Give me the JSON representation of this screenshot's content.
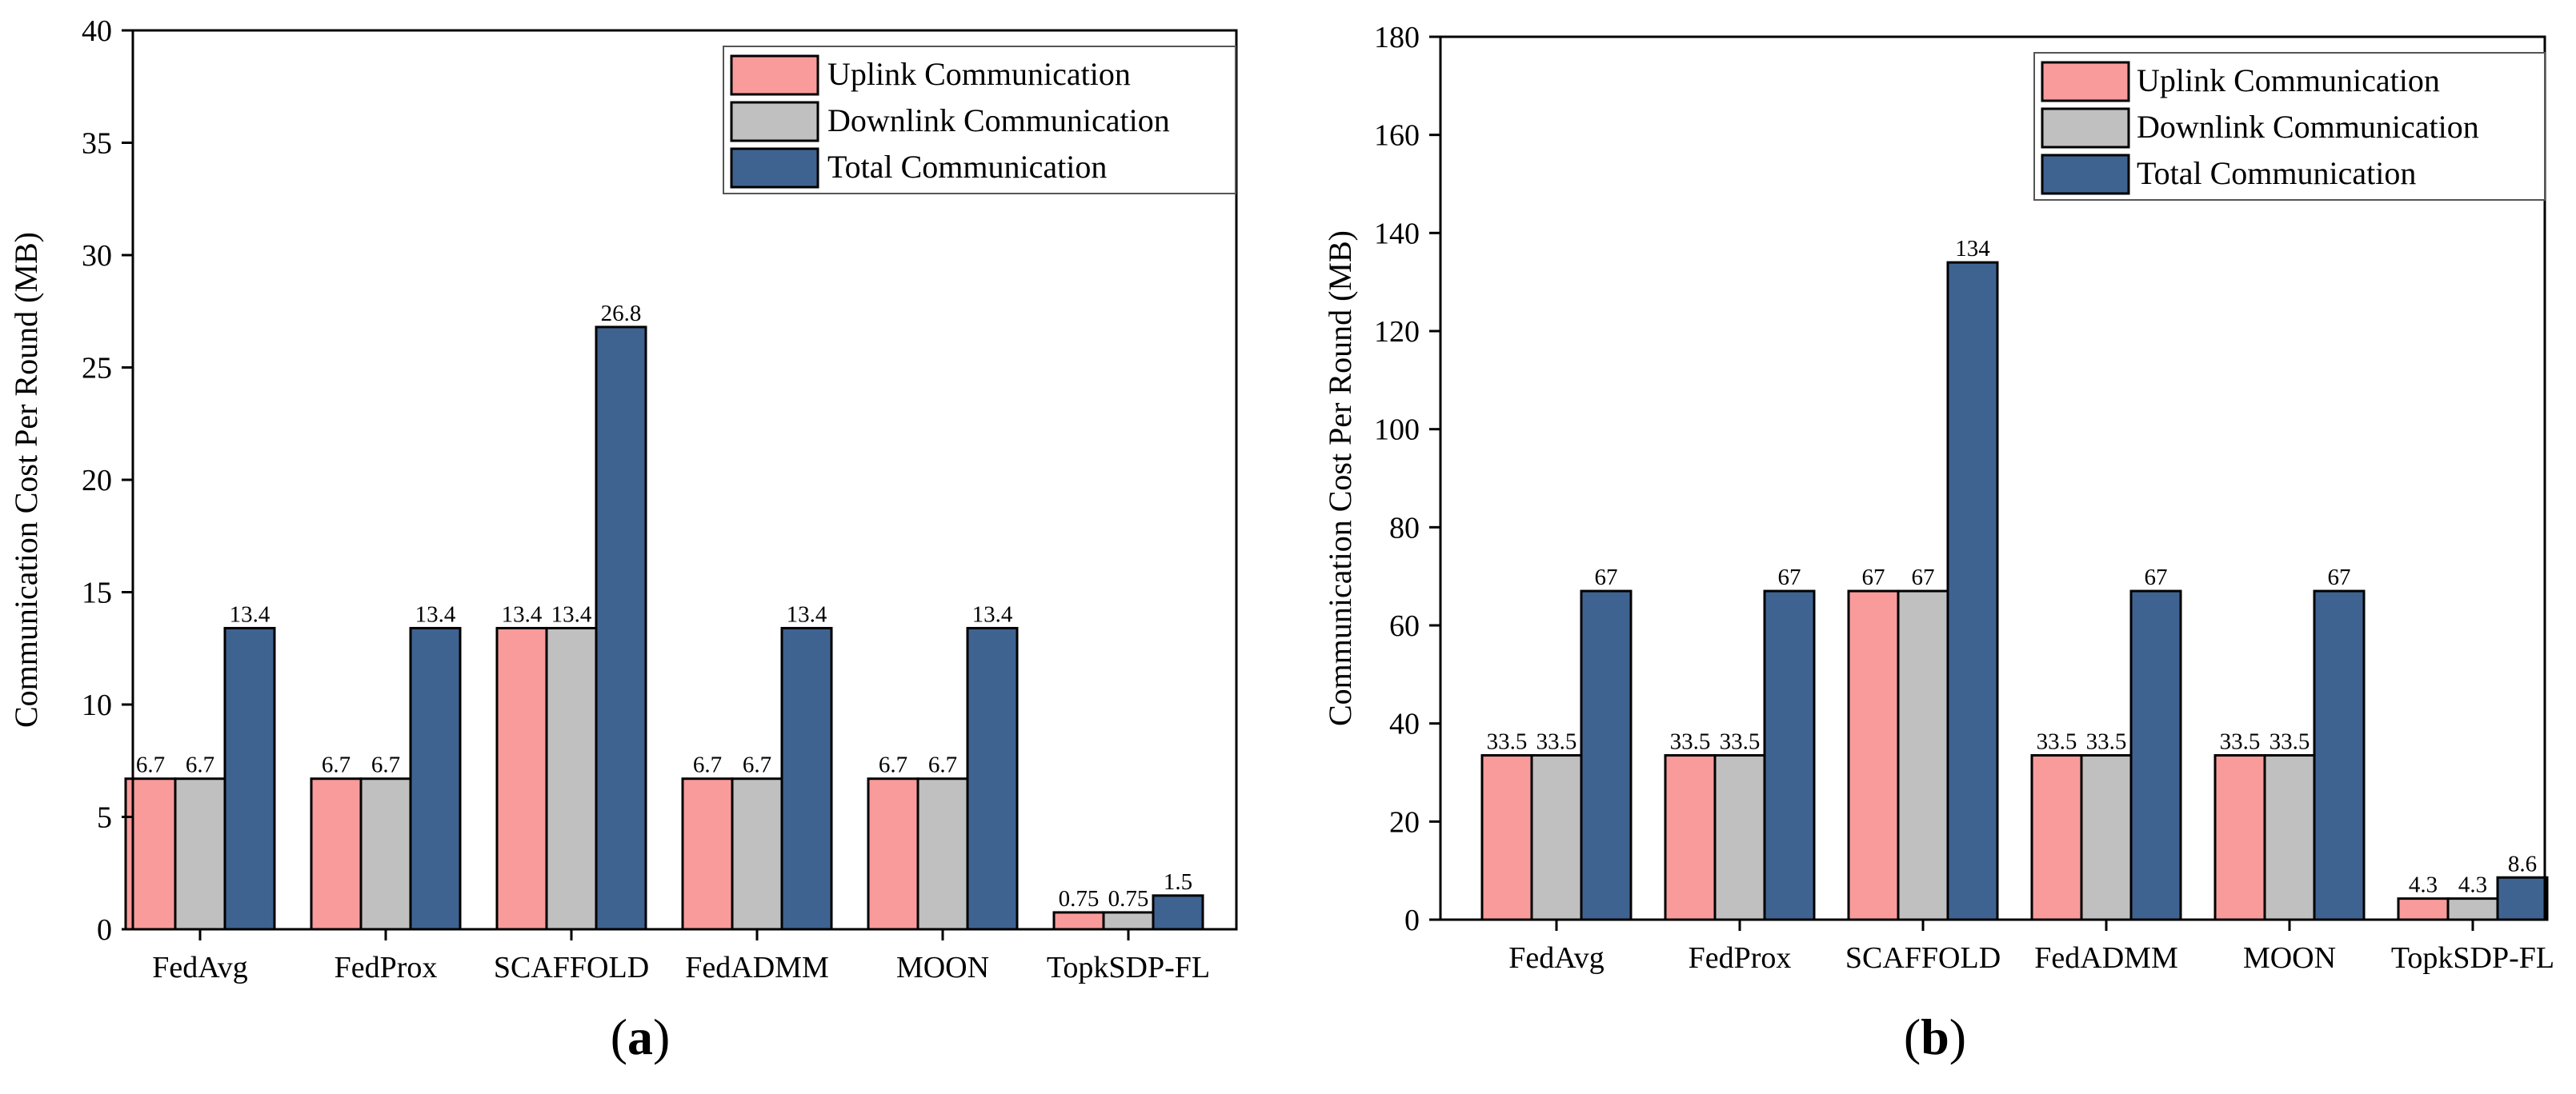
{
  "chart_data": [
    {
      "type": "bar",
      "panel_label": "a",
      "categories": [
        "FedAvg",
        "FedProx",
        "SCAFFOLD",
        "FedADMM",
        "MOON",
        "TopkSDP-FL"
      ],
      "series": [
        {
          "name": "Uplink Communication",
          "color": "#F99B9B",
          "values": [
            6.7,
            6.7,
            13.4,
            6.7,
            6.7,
            0.75
          ]
        },
        {
          "name": "Downlink Communication",
          "color": "#C0C0C0",
          "values": [
            6.7,
            6.7,
            13.4,
            6.7,
            6.7,
            0.75
          ]
        },
        {
          "name": "Total Communication",
          "color": "#3F6391",
          "values": [
            13.4,
            13.4,
            26.8,
            13.4,
            13.4,
            1.5
          ]
        }
      ],
      "data_labels": [
        [
          "6.7",
          "6.7",
          "13.4",
          "6.7",
          "6.7",
          "0.75"
        ],
        [
          "6.7",
          "6.7",
          "13.4",
          "6.7",
          "6.7",
          "0.75"
        ],
        [
          "13.4",
          "13.4",
          "26.8",
          "13.4",
          "13.4",
          "1.5"
        ]
      ],
      "ylabel": "Communication Cost Per Round (MB)",
      "xlabel": "",
      "ylim": [
        0,
        40
      ],
      "yticks": [
        0,
        5,
        10,
        15,
        20,
        25,
        30,
        35,
        40
      ],
      "legend": "top-right"
    },
    {
      "type": "bar",
      "panel_label": "b",
      "categories": [
        "FedAvg",
        "FedProx",
        "SCAFFOLD",
        "FedADMM",
        "MOON",
        "TopkSDP-FL"
      ],
      "series": [
        {
          "name": "Uplink Communication",
          "color": "#F99B9B",
          "values": [
            33.5,
            33.5,
            67,
            33.5,
            33.5,
            4.3
          ]
        },
        {
          "name": "Downlink Communication",
          "color": "#C0C0C0",
          "values": [
            33.5,
            33.5,
            67,
            33.5,
            33.5,
            4.3
          ]
        },
        {
          "name": "Total Communication",
          "color": "#3F6391",
          "values": [
            67,
            67,
            134,
            67,
            67,
            8.6
          ]
        }
      ],
      "data_labels": [
        [
          "33.5",
          "33.5",
          "67",
          "33.5",
          "33.5",
          "4.3"
        ],
        [
          "33.5",
          "33.5",
          "67",
          "33.5",
          "33.5",
          "4.3"
        ],
        [
          "67",
          "67",
          "134",
          "67",
          "67",
          "8.6"
        ]
      ],
      "ylabel": "Communication Cost Per Round (MB)",
      "xlabel": "",
      "ylim": [
        0,
        180
      ],
      "yticks": [
        0,
        20,
        40,
        60,
        80,
        100,
        120,
        140,
        160,
        180
      ],
      "legend": "top-right"
    }
  ]
}
